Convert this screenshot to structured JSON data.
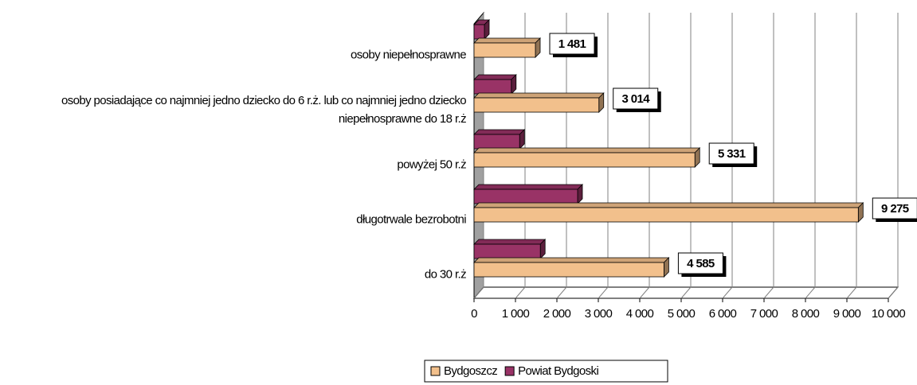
{
  "chart_data": {
    "type": "bar3d_horizontal",
    "categories": [
      "do 30 r.ż",
      "długotrwale bezrobotni",
      "powyżej 50 r.ż",
      "osoby posiadające co najmniej jedno dziecko do 6 r.ż. lub co najmniej jedno dziecko niepełnosprawne do 18 r.ż",
      "osoby niepełnosprawne"
    ],
    "series": [
      {
        "name": "Bydgoszcz",
        "color": "#f2c08c",
        "values": [
          4585,
          9275,
          5331,
          3014,
          1481
        ],
        "value_labels": [
          "4 585",
          "9 275",
          "5 331",
          "3 014",
          "1 481"
        ]
      },
      {
        "name": "Powiat Bydgoski",
        "color": "#993366",
        "values": [
          1600,
          2500,
          1100,
          900,
          250
        ]
      }
    ],
    "xlim": [
      0,
      10000
    ],
    "xticks": [
      0,
      {
        "value": 1000,
        "label": "1 000"
      },
      {
        "value": 2000,
        "label": "2 000"
      },
      {
        "value": 3000,
        "label": "3 000"
      },
      {
        "value": 4000,
        "label": "4 000"
      },
      {
        "value": 5000,
        "label": "5 000"
      },
      {
        "value": 6000,
        "label": "6 000"
      },
      {
        "value": 7000,
        "label": "7 000"
      },
      {
        "value": 8000,
        "label": "8 000"
      },
      {
        "value": 9000,
        "label": "9 000"
      },
      {
        "value": 10000,
        "label": "10 000"
      }
    ],
    "grid": true,
    "legend": "bottom"
  }
}
